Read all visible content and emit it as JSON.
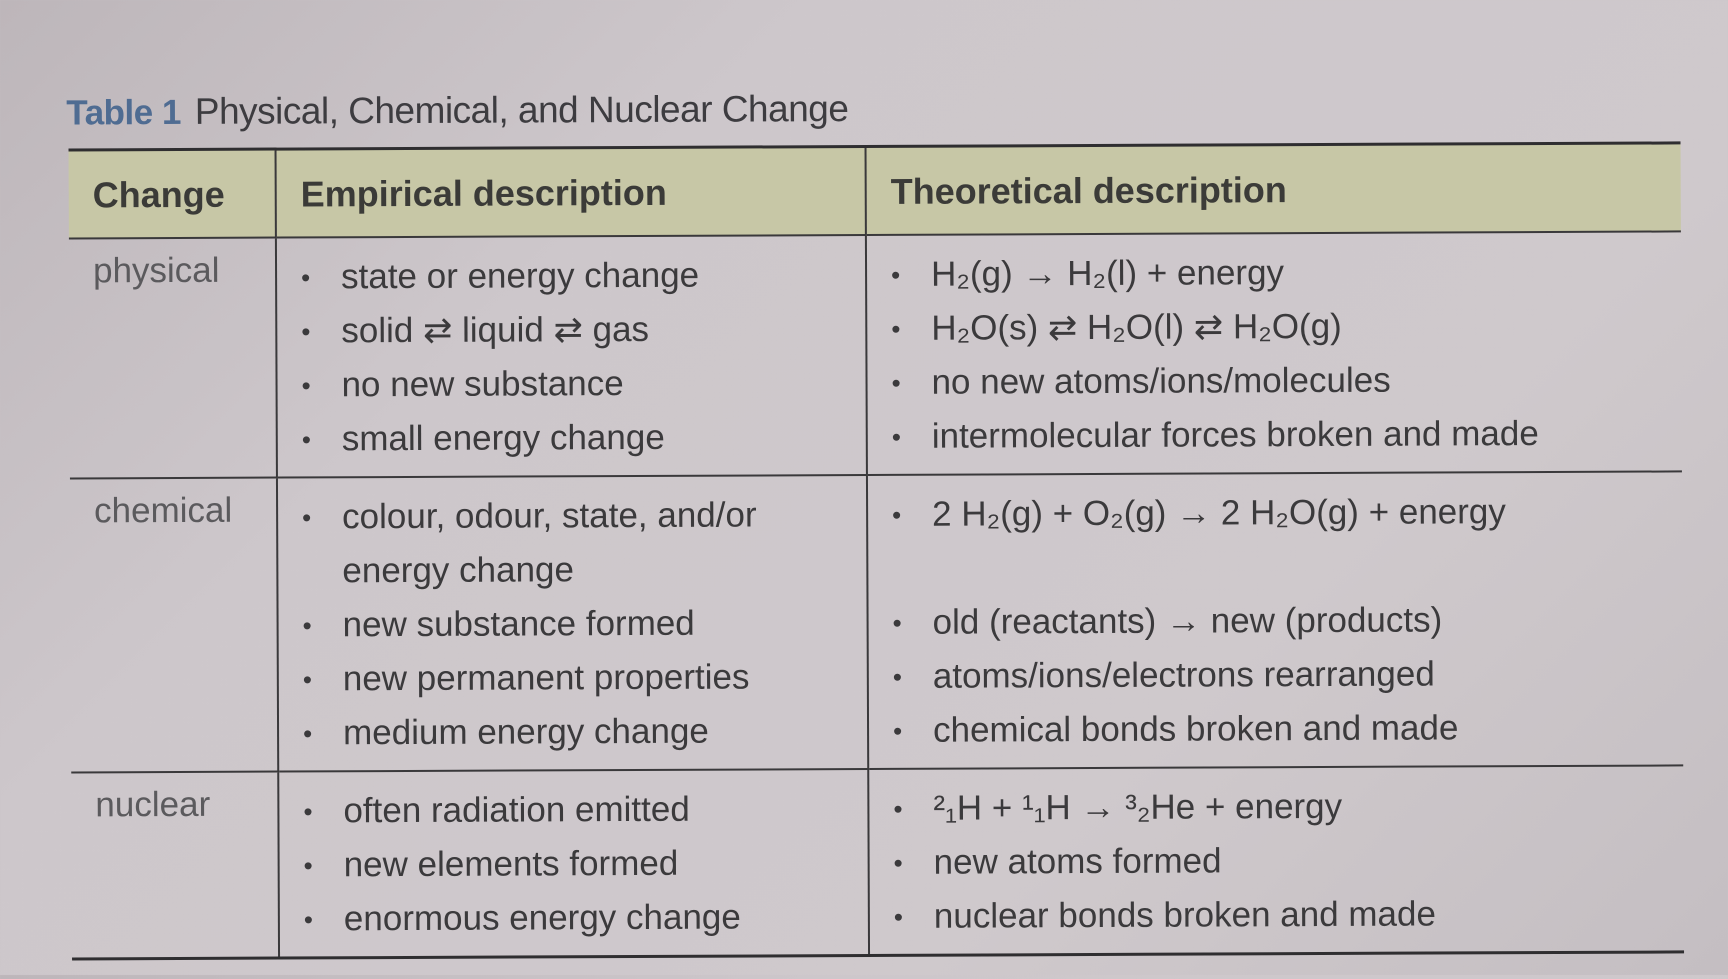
{
  "table": {
    "label": "Table 1",
    "caption": "Physical, Chemical, and Nuclear Change",
    "columns": [
      "Change",
      "Empirical description",
      "Theoretical description"
    ],
    "rows": [
      {
        "change": "physical",
        "empirical": [
          "state or energy change",
          "solid ⇄ liquid ⇄ gas",
          "no new substance",
          "small energy change"
        ],
        "theoretical": [
          "H₂(g) → H₂(l) + energy",
          "H₂O(s) ⇄ H₂O(l) ⇄ H₂O(g)",
          "no new atoms/ions/molecules",
          "intermolecular forces broken and made"
        ]
      },
      {
        "change": "chemical",
        "empirical": [
          "colour, odour, state, and/or energy change",
          "new substance formed",
          "new permanent properties",
          "medium energy change"
        ],
        "theoretical": [
          "2 H₂(g) + O₂(g) → 2 H₂O(g) + energy",
          "old (reactants) → new (products)",
          "atoms/ions/electrons rearranged",
          "chemical bonds broken and made"
        ]
      },
      {
        "change": "nuclear",
        "empirical": [
          "often radiation emitted",
          "new elements formed",
          "enormous energy change"
        ],
        "theoretical": [
          "²₁H + ¹₁H → ³₂He + energy",
          "new atoms formed",
          "nuclear bonds broken and made"
        ]
      }
    ]
  },
  "colors": {
    "header_band": "#c7c7a6",
    "label_blue": "#4f6c92",
    "text": "#3b3a3c"
  }
}
